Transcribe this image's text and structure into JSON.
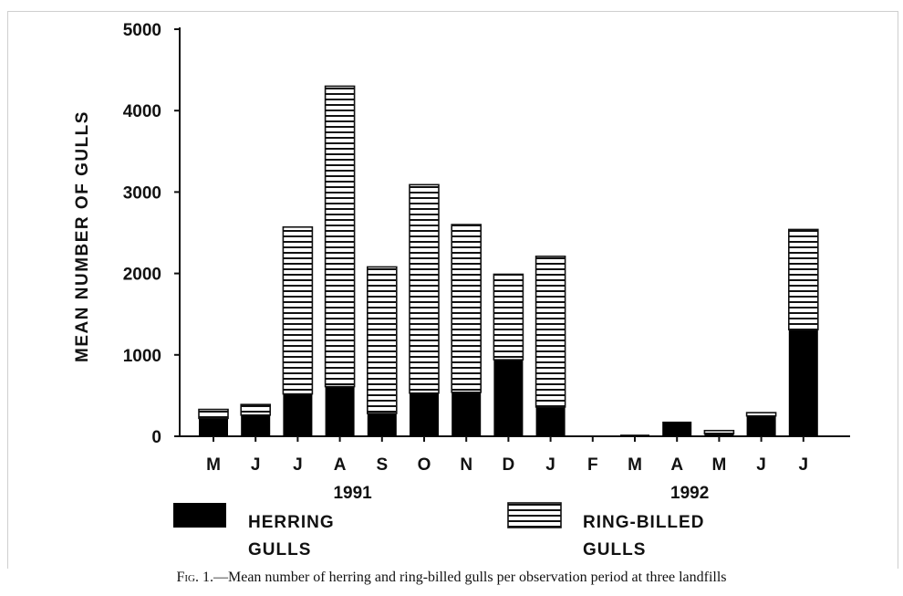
{
  "chart_data": {
    "type": "bar",
    "stacked": true,
    "ylabel": "MEAN NUMBER OF GULLS",
    "xlabel": "",
    "ylim": [
      0,
      5000
    ],
    "yticks": [
      "0",
      "1000",
      "2000",
      "3000",
      "4000",
      "5000"
    ],
    "categories": [
      "M",
      "J",
      "J",
      "A",
      "S",
      "O",
      "N",
      "D",
      "J",
      "F",
      "M",
      "A",
      "M",
      "J",
      "J"
    ],
    "year_labels": [
      {
        "label": "1991",
        "under_category_index": 3
      },
      {
        "label": "1992",
        "under_category_index": 11
      }
    ],
    "series": [
      {
        "name": "HERRING GULLS",
        "fill": "solid",
        "color": "#000000",
        "values": [
          220,
          260,
          520,
          610,
          280,
          530,
          540,
          940,
          360,
          0,
          20,
          180,
          30,
          250,
          1310
        ]
      },
      {
        "name": "RING-BILLED GULLS",
        "fill": "horizontal-stripes",
        "color": "#000000",
        "values": [
          110,
          130,
          2050,
          3690,
          1800,
          2560,
          2060,
          1050,
          1850,
          0,
          0,
          0,
          40,
          40,
          1230
        ]
      }
    ],
    "legend": {
      "placement": "bottom",
      "items": [
        {
          "line1": "HERRING",
          "line2": "GULLS",
          "fill": "solid"
        },
        {
          "line1": "RING-BILLED",
          "line2": "GULLS",
          "fill": "horizontal-stripes"
        }
      ]
    },
    "grid": false
  },
  "caption": {
    "lead": "Fig. 1.",
    "text": "—Mean number of herring and ring-billed gulls per observation period at three landfills"
  }
}
